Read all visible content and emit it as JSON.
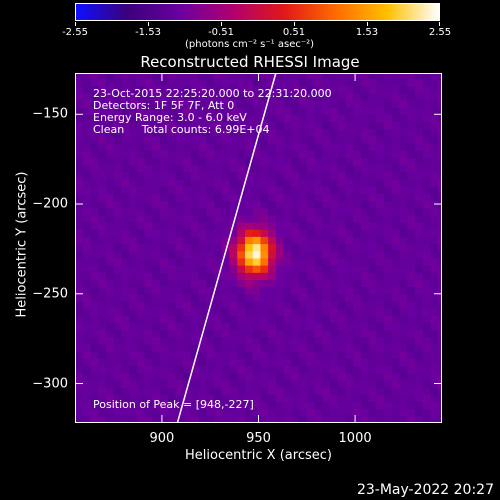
{
  "colorbar": {
    "tick_labels": [
      "-2.55",
      "-1.53",
      "-0.51",
      "0.51",
      "1.53",
      "2.55"
    ],
    "tick_values": [
      -2.55,
      -1.53,
      -0.51,
      0.51,
      1.53,
      2.55
    ],
    "range": [
      -2.55,
      2.55
    ],
    "units": "(photons cm⁻² s⁻¹ asec⁻²)",
    "colors": [
      "#1010ff",
      "#3b007a",
      "#6a00a0",
      "#b00070",
      "#e01818",
      "#ff6a00",
      "#ffc000",
      "#ffffff"
    ]
  },
  "chart_data": {
    "type": "heatmap",
    "title": "Reconstructed RHESSI Image",
    "xlabel": "Heliocentric X (arcsec)",
    "ylabel": "Heliocentric Y (arcsec)",
    "xlim": [
      855,
      1045
    ],
    "ylim": [
      -322,
      -127
    ],
    "x_ticks": [
      900,
      950,
      1000
    ],
    "y_ticks": [
      -150,
      -200,
      -250,
      -300
    ],
    "annotations": {
      "time_range": "23-Oct-2015 22:25:20.000 to 22:31:20.000",
      "detectors": "Detectors: 1F 5F 7F, Att 0",
      "energy": "Energy Range: 3.0 - 6.0 keV",
      "method": "Clean     Total counts: 6.99E+04",
      "peak": "Position of Peak = [948,-227]"
    },
    "peak": [
      948,
      -227
    ],
    "limb_line": [
      [
        908,
        -322
      ],
      [
        959,
        -127
      ]
    ]
  },
  "footer": {
    "date": "23-May-2022 20:27"
  }
}
